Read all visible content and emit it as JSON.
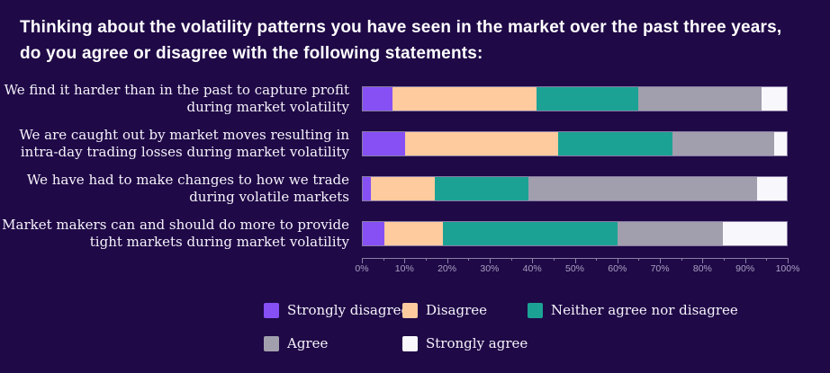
{
  "header": {
    "title": "Thinking about the volatility patterns you have seen in the market over the past three years, do you agree or disagree with the following statements:"
  },
  "colors": {
    "background": "#1f0947",
    "title_text": "#ffffff",
    "label_text": "#f6f3fb",
    "axis_line": "#8a80a4",
    "axis_text": "#aaa1c2"
  },
  "chart_data": {
    "type": "bar",
    "orientation": "horizontal",
    "stacked": true,
    "title": "Thinking about the volatility patterns you have seen in the market over the past three years, do you agree or disagree with the following statements:",
    "categories": [
      "We find it harder than in the past to capture profit during market volatility",
      "We are caught out by market moves resulting in intra-day trading losses during market volatility",
      "We have had to make changes to how we trade during volatile markets",
      "Market makers can and should do more to provide tight markets during market volatility"
    ],
    "category_lines": [
      [
        "We find it harder than in the past to capture profit",
        "during market volatility"
      ],
      [
        "We are caught out by market moves resulting in",
        "intra-day trading losses during market volatility"
      ],
      [
        "We have had to make changes to how we trade",
        "during volatile markets"
      ],
      [
        "Market makers can and should do more to provide",
        "tight markets during market volatility"
      ]
    ],
    "series": [
      {
        "name": "Strongly disagree",
        "color": "#8650f5",
        "values": [
          7,
          10,
          2,
          5
        ]
      },
      {
        "name": "Disagree",
        "color": "#fecb9e",
        "values": [
          34,
          36,
          15,
          14
        ]
      },
      {
        "name": "Neither agree nor disagree",
        "color": "#1ba294",
        "values": [
          24,
          27,
          22,
          41
        ]
      },
      {
        "name": "Agree",
        "color": "#a19fad",
        "values": [
          29,
          24,
          54,
          25
        ]
      },
      {
        "name": "Strongly agree",
        "color": "#f8f7fc",
        "values": [
          6,
          3,
          7,
          15
        ]
      }
    ],
    "xlim": [
      0,
      100
    ],
    "x_tick_labels": [
      "0%",
      "10%",
      "20%",
      "30%",
      "40%",
      "50%",
      "60%",
      "70%",
      "80%",
      "90%",
      "100%"
    ],
    "x_minor_tick_step": 5,
    "grid": false,
    "legend_position": "bottom"
  }
}
